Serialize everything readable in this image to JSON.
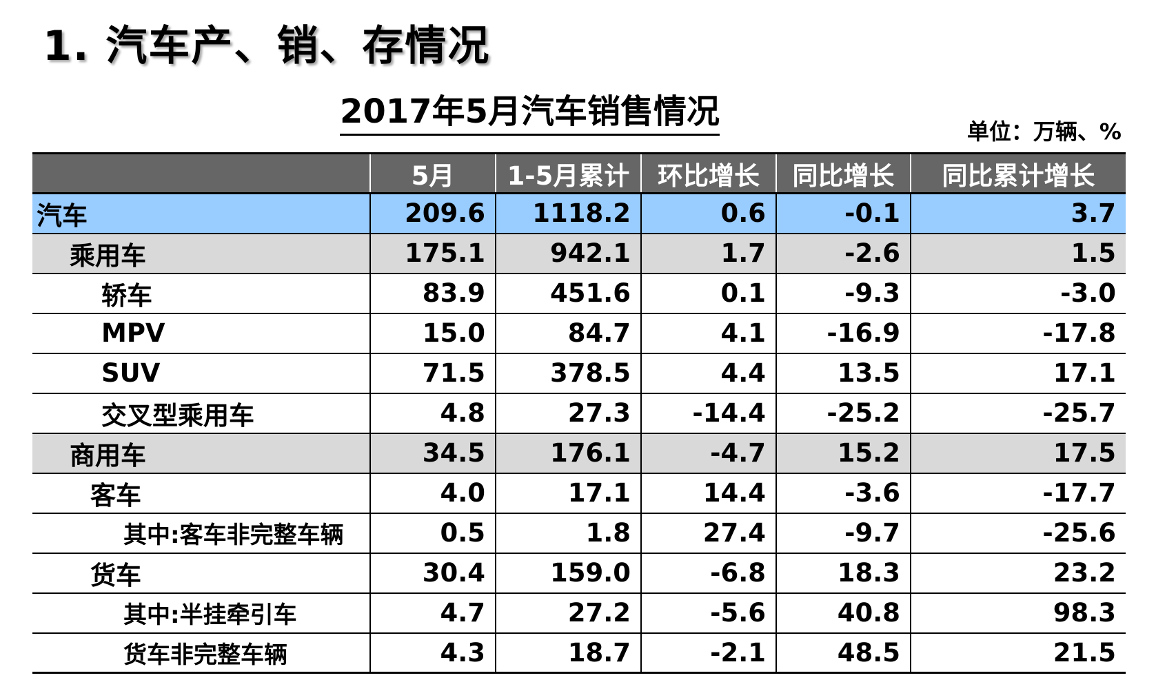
{
  "heading": "1. 汽车产、销、存情况",
  "table_title": "2017年5月汽车销售情况",
  "unit": "单位：万辆、%",
  "columns": [
    "",
    "5月",
    "1-5月累计",
    "环比增长",
    "同比增长",
    "同比累计增长"
  ],
  "rows": [
    {
      "label": "汽车",
      "level": 0,
      "style": "total",
      "values": [
        "209.6",
        "1118.2",
        "0.6",
        "-0.1",
        "3.7"
      ]
    },
    {
      "label": "乘用车",
      "level": 1,
      "style": "sub",
      "values": [
        "175.1",
        "942.1",
        "1.7",
        "-2.6",
        "1.5"
      ]
    },
    {
      "label": "轿车",
      "level": 2,
      "style": "",
      "values": [
        "83.9",
        "451.6",
        "0.1",
        "-9.3",
        "-3.0"
      ]
    },
    {
      "label": "MPV",
      "level": 2,
      "style": "",
      "values": [
        "15.0",
        "84.7",
        "4.1",
        "-16.9",
        "-17.8"
      ]
    },
    {
      "label": "SUV",
      "level": 2,
      "style": "",
      "values": [
        "71.5",
        "378.5",
        "4.4",
        "13.5",
        "17.1"
      ]
    },
    {
      "label": "交叉型乘用车",
      "level": 2,
      "style": "",
      "values": [
        "4.8",
        "27.3",
        "-14.4",
        "-25.2",
        "-25.7"
      ]
    },
    {
      "label": "商用车",
      "level": 1,
      "style": "sub",
      "values": [
        "34.5",
        "176.1",
        "-4.7",
        "15.2",
        "17.5"
      ]
    },
    {
      "label": "客车",
      "level": 3,
      "style": "",
      "values": [
        "4.0",
        "17.1",
        "14.4",
        "-3.6",
        "-17.7"
      ]
    },
    {
      "label": "其中:客车非完整车辆",
      "level": 4,
      "style": "",
      "values": [
        "0.5",
        "1.8",
        "27.4",
        "-9.7",
        "-25.6"
      ]
    },
    {
      "label": "货车",
      "level": 3,
      "style": "",
      "values": [
        "30.4",
        "159.0",
        "-6.8",
        "18.3",
        "23.2"
      ]
    },
    {
      "label": "其中:半挂牵引车",
      "level": 4,
      "style": "",
      "values": [
        "4.7",
        "27.2",
        "-5.6",
        "40.8",
        "98.3"
      ]
    },
    {
      "label": "货车非完整车辆",
      "level": 4,
      "style": "",
      "values": [
        "4.3",
        "18.7",
        "-2.1",
        "48.5",
        "21.5"
      ]
    }
  ]
}
